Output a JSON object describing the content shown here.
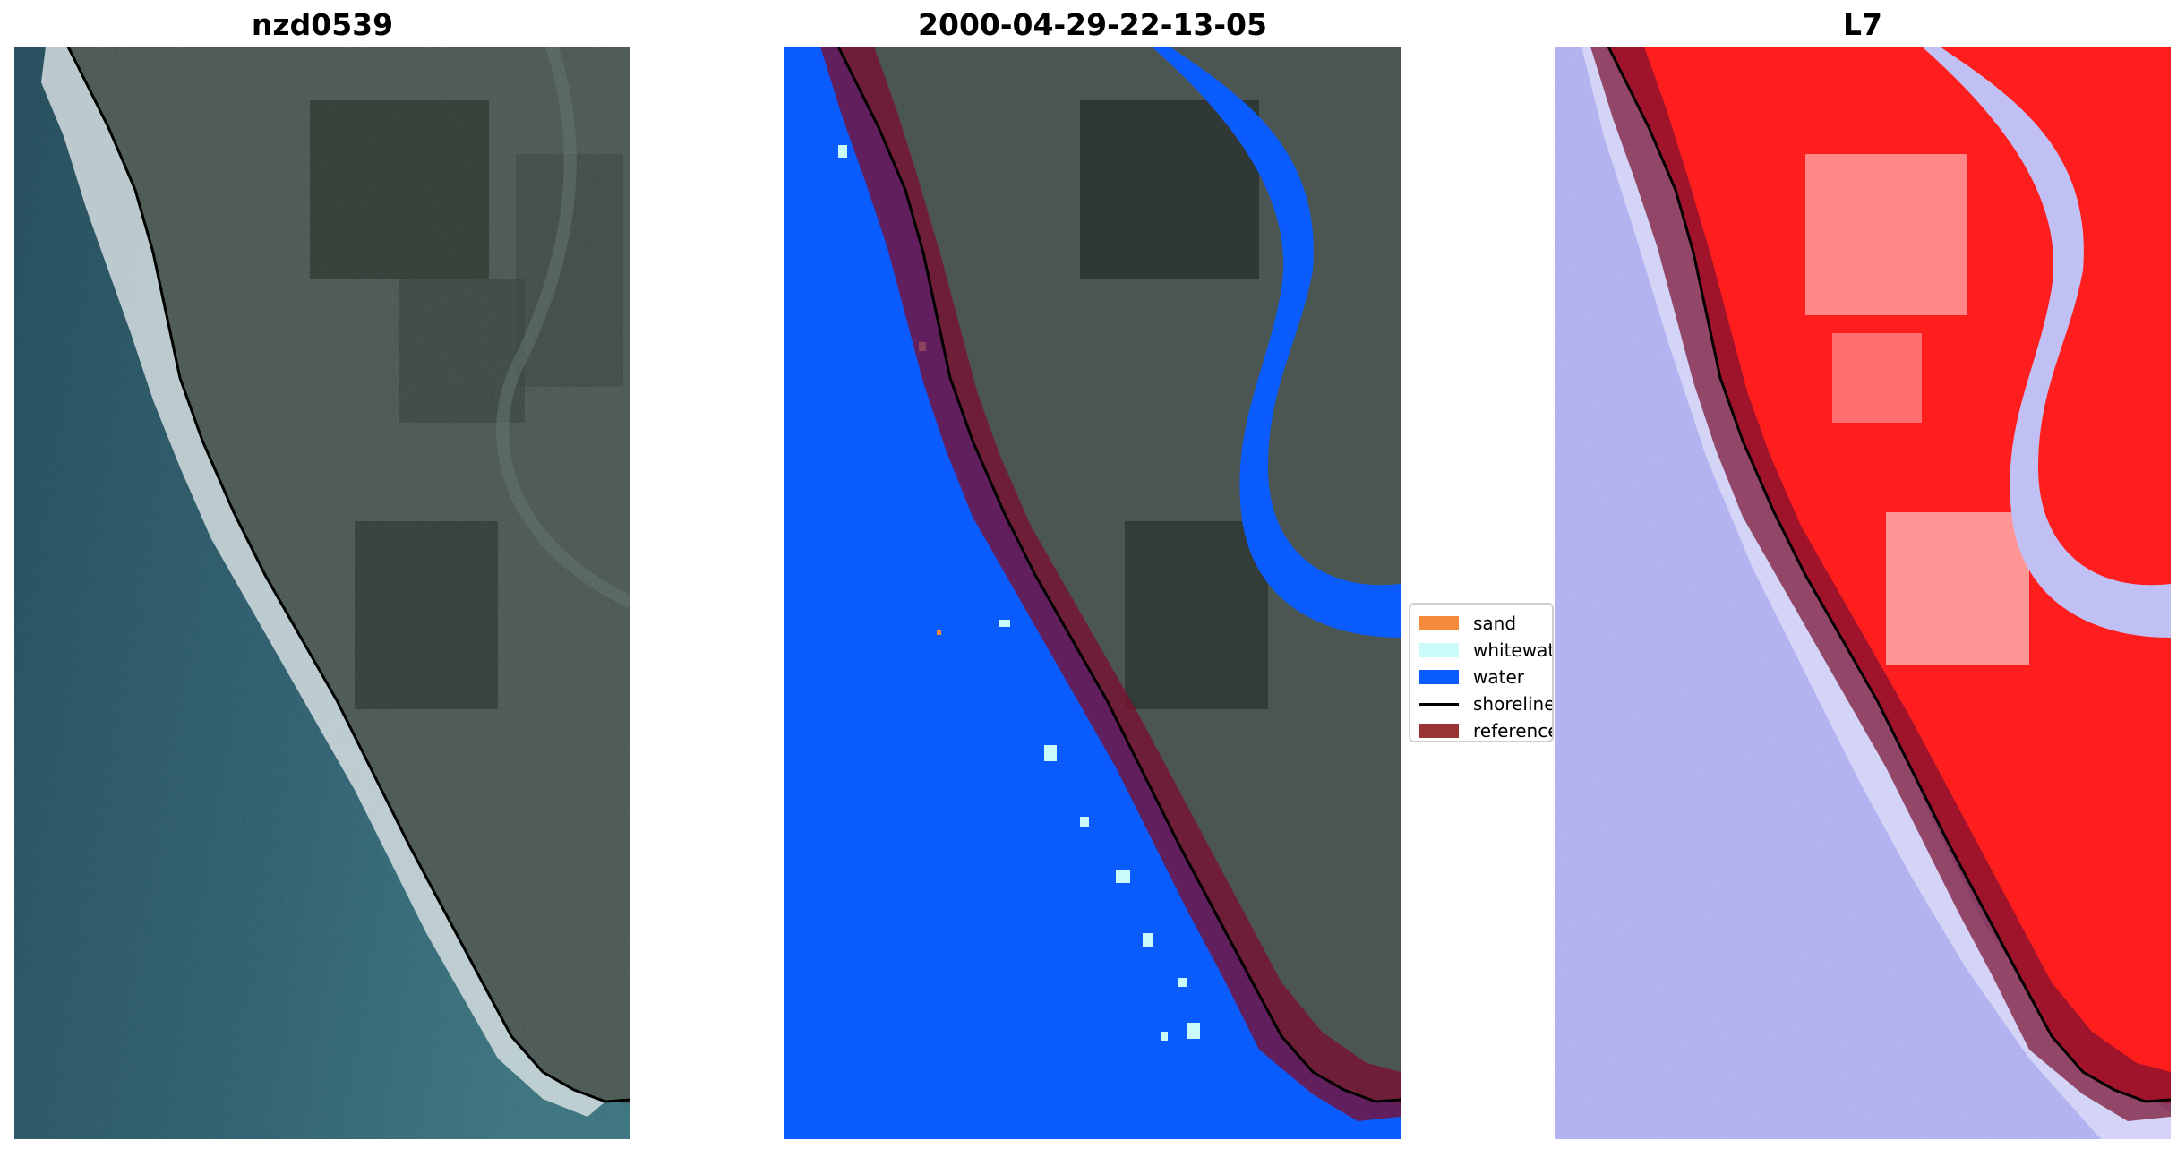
{
  "panels": [
    {
      "title": "nzd0539"
    },
    {
      "title": "2000-04-29-22-13-05"
    },
    {
      "title": "L7"
    }
  ],
  "legend": {
    "items": [
      {
        "label": "sand",
        "color": "#f58b3a",
        "kind": "patch"
      },
      {
        "label": "whitewater",
        "color": "#c9fbfb",
        "kind": "patch"
      },
      {
        "label": "water",
        "color": "#0a5cff",
        "kind": "patch"
      },
      {
        "label": "shoreline",
        "color": "#000000",
        "kind": "line"
      },
      {
        "label": "reference",
        "color": "#9a3434",
        "kind": "patch"
      }
    ]
  },
  "colors": {
    "ocean_rgb": "#2a5366",
    "land_rgb": "#44504b",
    "surf": "#e8eef0",
    "classified_water": "#0a5cff",
    "reference_band": "#7a1030",
    "index_land": "#ff1a1a",
    "index_water": "#a9a9f2"
  }
}
